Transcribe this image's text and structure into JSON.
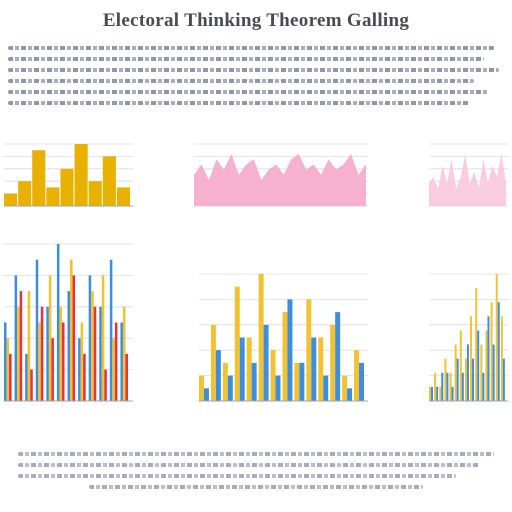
{
  "page": {
    "title": "Electoral Thinking Theorem Galling"
  },
  "colors": {
    "yellow": "#f2c230",
    "gold": "#e8b100",
    "blue": "#3c8fe0",
    "lightblue": "#8cc4f2",
    "red": "#e8313b",
    "pink": "#f4a8c8",
    "pinkLight": "#f8c8dc",
    "grid": "#d8dde6"
  },
  "chart_data": [
    {
      "type": "bar",
      "panel": "top-left",
      "series": [
        {
          "color": "gold",
          "values": [
            2,
            4,
            9,
            3,
            6,
            10,
            4,
            8,
            3
          ]
        }
      ]
    },
    {
      "type": "area",
      "panel": "top-middle",
      "series": [
        {
          "color": "pink",
          "values": [
            6,
            8,
            5,
            9,
            7,
            10,
            6,
            8,
            9,
            5,
            7,
            8,
            6,
            9,
            10,
            7,
            8,
            6,
            9,
            7,
            8,
            10,
            6,
            8
          ]
        }
      ]
    },
    {
      "type": "area",
      "panel": "top-right",
      "series": [
        {
          "color": "pinkLight",
          "values": [
            4,
            5,
            3,
            7,
            4,
            8,
            3,
            5,
            9,
            4,
            6,
            3,
            8,
            4,
            7,
            5,
            9,
            4
          ]
        }
      ]
    },
    {
      "type": "bar",
      "panel": "bottom-left",
      "series": [
        {
          "color": "blue",
          "values": [
            5,
            8,
            3,
            9,
            6,
            10,
            7,
            4,
            8,
            6,
            9,
            5
          ]
        },
        {
          "color": "yellow",
          "values": [
            4,
            6,
            7,
            5,
            8,
            6,
            9,
            5,
            7,
            8,
            4,
            6
          ]
        },
        {
          "color": "red",
          "values": [
            3,
            7,
            2,
            6,
            4,
            5,
            8,
            3,
            6,
            2,
            5,
            3
          ]
        }
      ]
    },
    {
      "type": "bar",
      "panel": "bottom-middle",
      "series": [
        {
          "color": "yellow",
          "values": [
            2,
            6,
            3,
            9,
            5,
            10,
            4,
            7,
            3,
            8,
            5,
            6,
            2,
            4
          ]
        },
        {
          "color": "blue",
          "values": [
            1,
            4,
            2,
            5,
            3,
            6,
            2,
            8,
            3,
            5,
            2,
            7,
            1,
            3
          ]
        }
      ]
    },
    {
      "type": "bar",
      "panel": "bottom-right",
      "series": [
        {
          "color": "yellow",
          "values": [
            1,
            2,
            1,
            3,
            2,
            4,
            5,
            3,
            6,
            8,
            4,
            5,
            7,
            9,
            6
          ]
        },
        {
          "color": "blue",
          "values": [
            1,
            1,
            2,
            2,
            1,
            3,
            2,
            4,
            3,
            5,
            2,
            6,
            4,
            7,
            3
          ]
        }
      ]
    }
  ]
}
